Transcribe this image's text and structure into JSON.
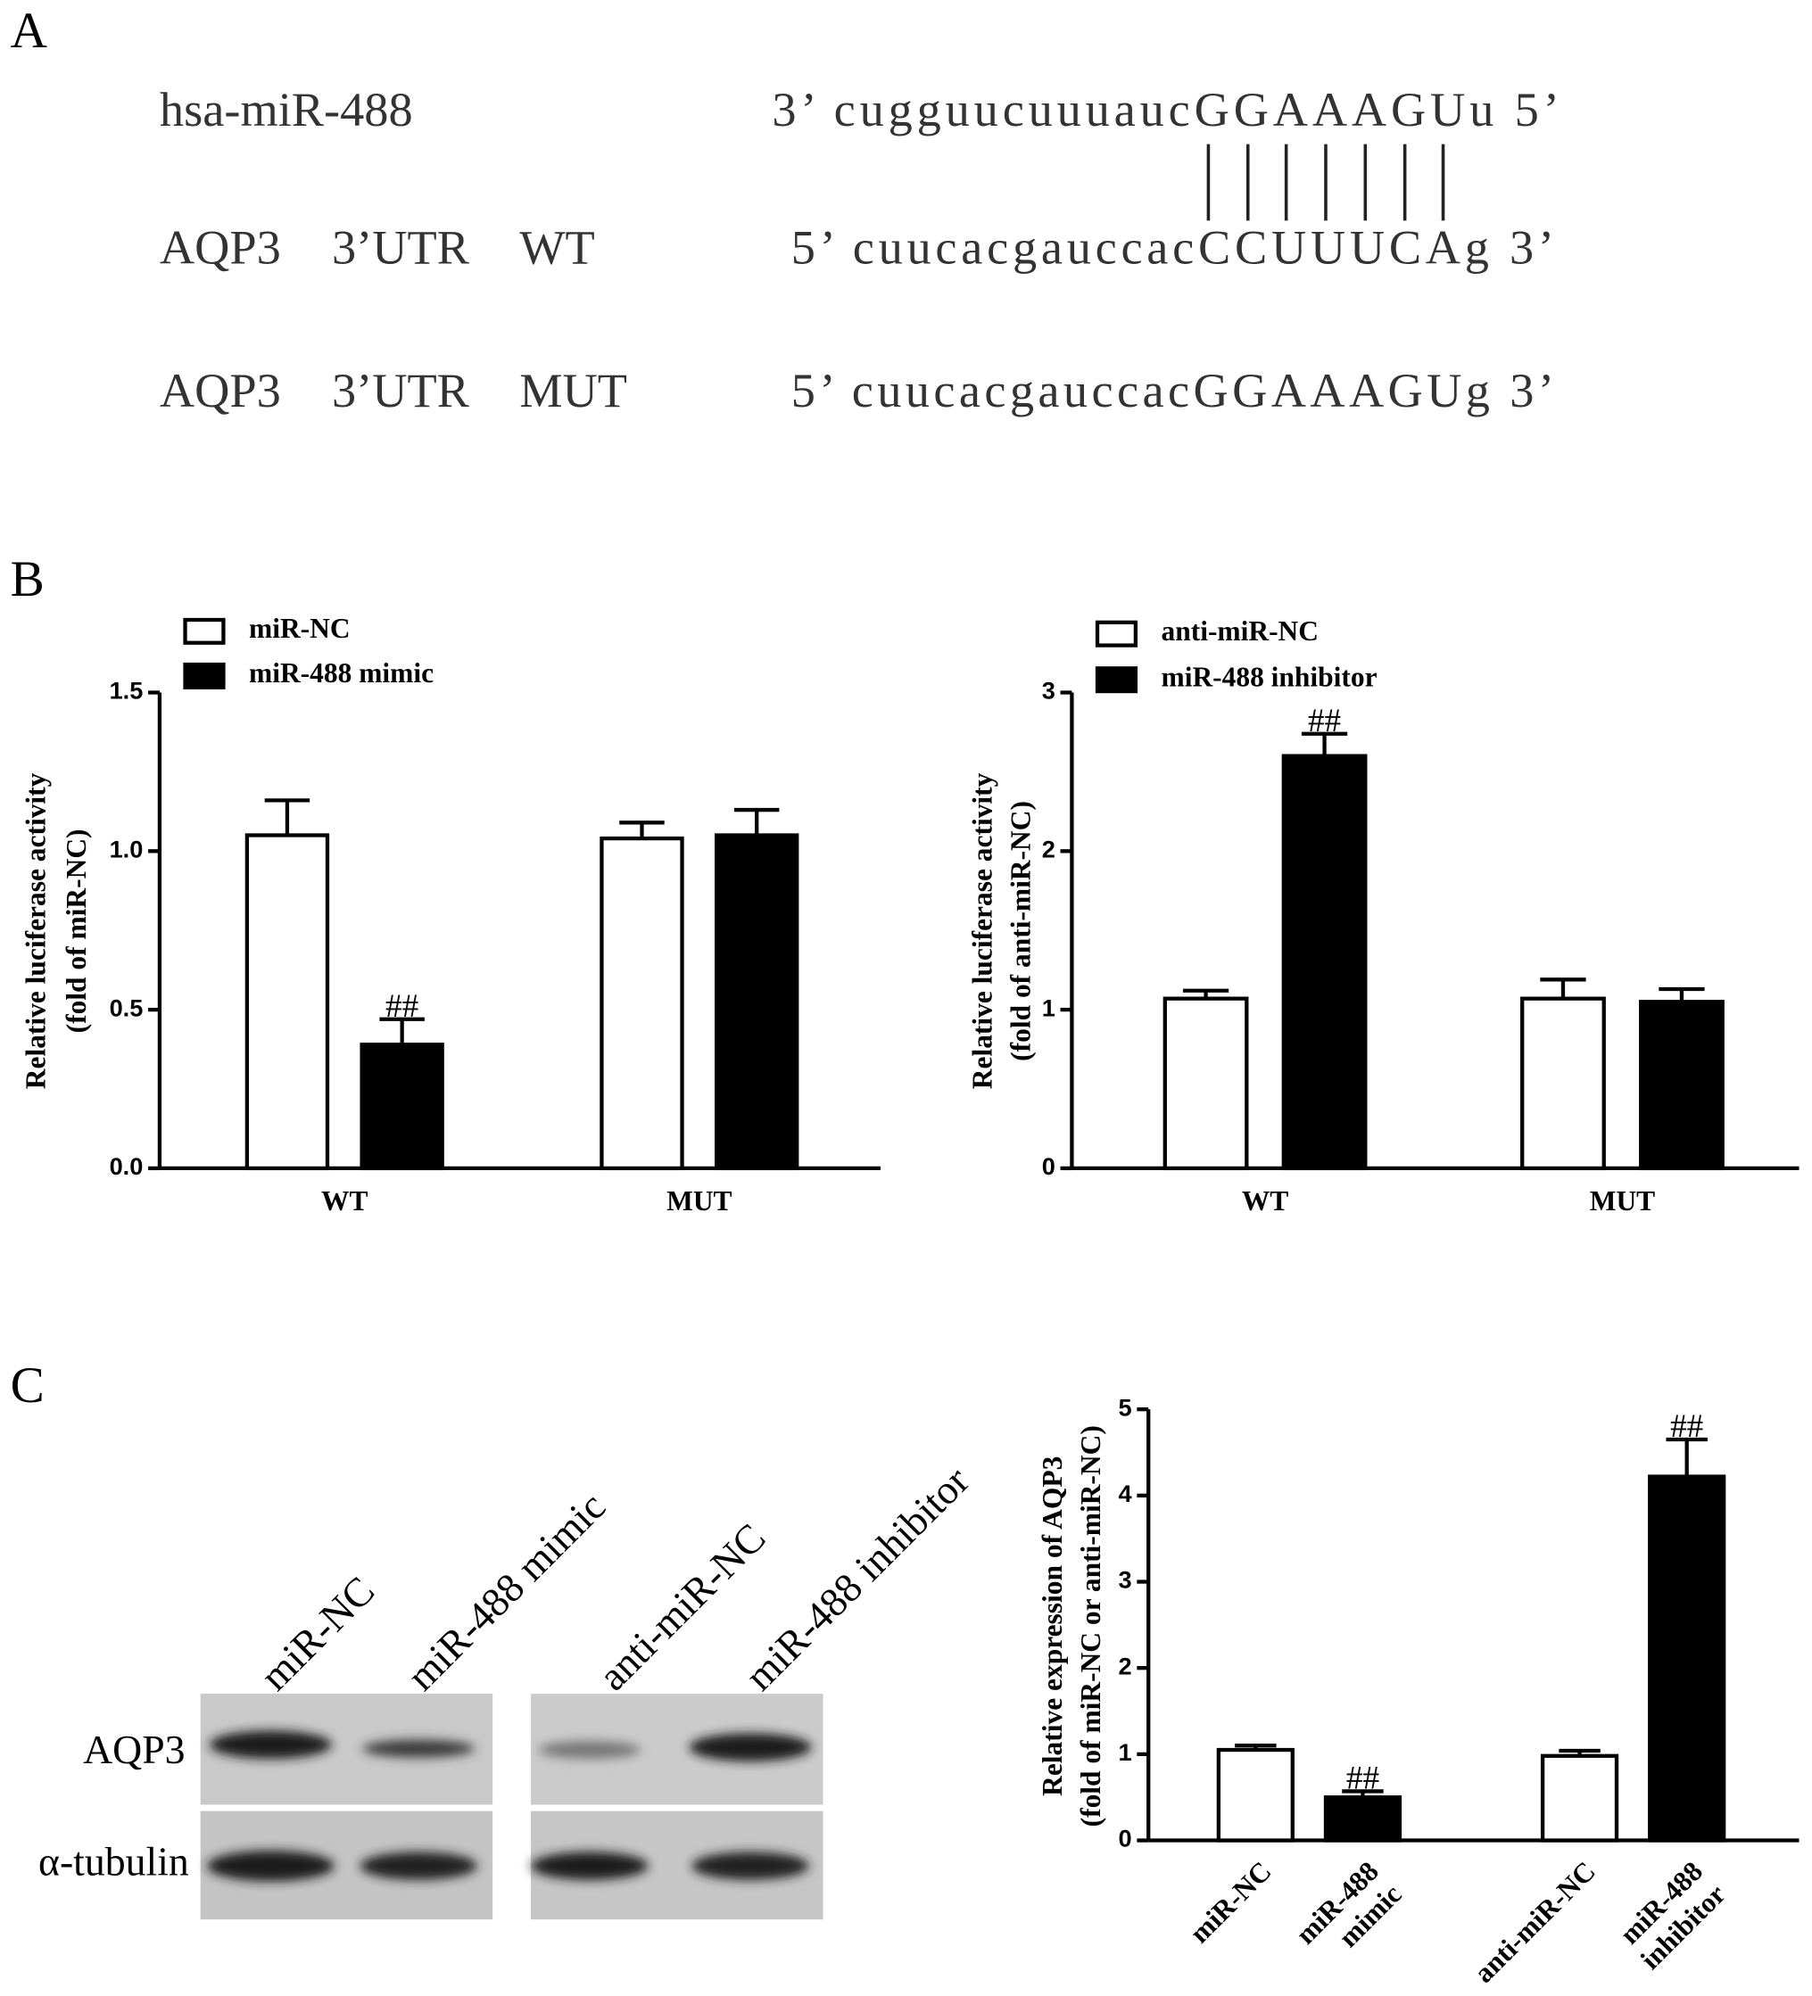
{
  "panel_labels": [
    "A",
    "B",
    "C"
  ],
  "sequence_alignment": {
    "rows": [
      {
        "label": [
          "hsa-miR-488"
        ],
        "sequence": "3’ cugguucuuuaucGGAAAGUu 5’"
      },
      {
        "label": [
          "AQP3",
          "3’UTR",
          "WT"
        ],
        "sequence": "5’ cuucacgauccacCCUUUCAg 3’"
      },
      {
        "label": [
          "AQP3",
          "3’UTR",
          "MUT"
        ],
        "sequence": "5’ cuucacgauccacGGAAAGUg 3’"
      }
    ]
  },
  "western_blot": {
    "lanes": [
      "miR-NC",
      "miR-488 mimic",
      "anti-miR-NC",
      "miR-488 inhibitor"
    ],
    "proteins": [
      "AQP3",
      "α-tubulin"
    ]
  },
  "chart_data": [
    {
      "type": "bar",
      "ylabel": [
        "Relative luciferase activity",
        "(fold of miR-NC)"
      ],
      "categories": [
        "WT",
        "MUT"
      ],
      "ylim": [
        0,
        1.5
      ],
      "yticks": [
        {
          "value": 0,
          "label": "0.0"
        },
        0.5,
        {
          "value": 1,
          "label": "1.0"
        },
        1.5
      ],
      "series": [
        {
          "name": "miR-NC",
          "color": "#ffffff",
          "values": [
            1.05,
            1.04
          ],
          "errors": [
            0.11,
            0.05
          ],
          "annotations": [
            null,
            null
          ]
        },
        {
          "name": "miR-488 mimic",
          "color": "#000000",
          "values": [
            0.39,
            1.05
          ],
          "errors": [
            0.08,
            0.08
          ],
          "annotations": [
            "##",
            null
          ]
        }
      ]
    },
    {
      "type": "bar",
      "ylabel": [
        "Relative luciferase activity",
        "(fold of anti-miR-NC)"
      ],
      "categories": [
        "WT",
        "MUT"
      ],
      "ylim": [
        0,
        3
      ],
      "yticks": [
        0,
        1,
        2,
        3
      ],
      "series": [
        {
          "name": "anti-miR-NC",
          "color": "#ffffff",
          "values": [
            1.07,
            1.07
          ],
          "errors": [
            0.05,
            0.12
          ],
          "annotations": [
            null,
            null
          ]
        },
        {
          "name": "miR-488 inhibitor",
          "color": "#000000",
          "values": [
            2.6,
            1.05
          ],
          "errors": [
            0.14,
            0.08
          ],
          "annotations": [
            "##",
            null
          ]
        }
      ]
    },
    {
      "type": "bar",
      "ylabel": [
        "Relative expression of AQP3",
        "(fold of miR-NC or anti-miR-NC)"
      ],
      "categories": [
        [
          "miR-NC"
        ],
        [
          "miR-488",
          "mimic"
        ],
        [
          "anti-miR-NC"
        ],
        [
          "miR-488",
          "inhibitor"
        ]
      ],
      "ylim": [
        0,
        5
      ],
      "yticks": [
        0,
        1,
        2,
        3,
        4,
        5
      ],
      "series": [
        {
          "colors": [
            "#ffffff",
            "#000000",
            "#ffffff",
            "#000000"
          ],
          "values": [
            1.05,
            0.5,
            0.98,
            4.22
          ],
          "errors": [
            0.05,
            0.07,
            0.06,
            0.43
          ],
          "annotations": [
            null,
            "##",
            null,
            "##"
          ]
        }
      ]
    }
  ]
}
